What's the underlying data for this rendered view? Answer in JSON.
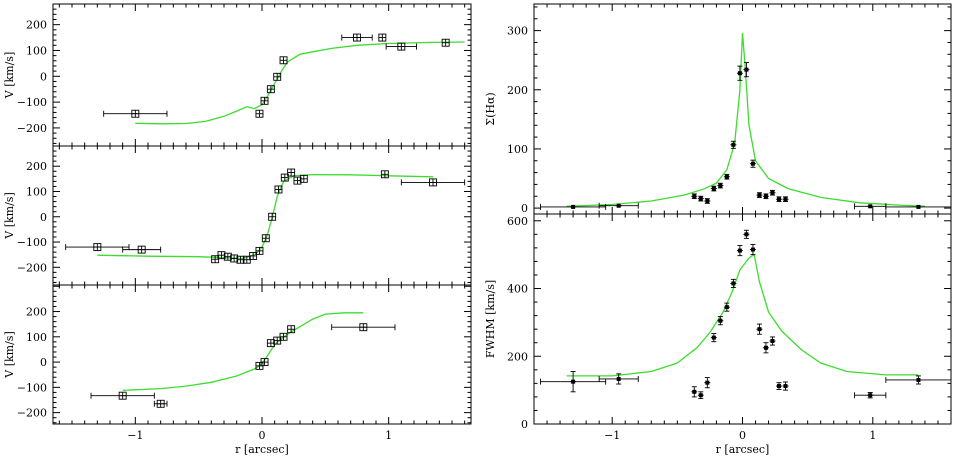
{
  "chart_data": [
    {
      "id": "vel-top",
      "type": "scatter",
      "ylabel": "V [km/s]",
      "xlim": [
        -1.65,
        1.65
      ],
      "ylim": [
        -270,
        280
      ],
      "xticks": [
        -1,
        0,
        1
      ],
      "yticks": [
        -200,
        -100,
        0,
        100,
        200
      ],
      "ytick_labels": [
        "−200",
        "−100",
        "0",
        "100",
        "200"
      ],
      "marker": "square",
      "points": [
        {
          "x": -1.0,
          "y": -145,
          "xerr_lo": 0.25,
          "xerr_hi": 0.25
        },
        {
          "x": -0.02,
          "y": -145
        },
        {
          "x": 0.02,
          "y": -95
        },
        {
          "x": 0.07,
          "y": -50
        },
        {
          "x": 0.12,
          "y": -2
        },
        {
          "x": 0.17,
          "y": 62
        },
        {
          "x": 0.75,
          "y": 150,
          "xerr_lo": 0.12,
          "xerr_hi": 0.12
        },
        {
          "x": 0.95,
          "y": 150
        },
        {
          "x": 1.1,
          "y": 115,
          "xerr_lo": 0.12,
          "xerr_hi": 0.12
        },
        {
          "x": 1.45,
          "y": 130
        }
      ],
      "model": [
        [
          -1.0,
          -182
        ],
        [
          -0.8,
          -184
        ],
        [
          -0.6,
          -183
        ],
        [
          -0.45,
          -175
        ],
        [
          -0.3,
          -155
        ],
        [
          -0.2,
          -135
        ],
        [
          -0.12,
          -118
        ],
        [
          -0.06,
          -125
        ],
        [
          0.0,
          -110
        ],
        [
          0.04,
          -80
        ],
        [
          0.08,
          -45
        ],
        [
          0.12,
          -10
        ],
        [
          0.16,
          25
        ],
        [
          0.2,
          55
        ],
        [
          0.3,
          85
        ],
        [
          0.4,
          95
        ],
        [
          0.55,
          108
        ],
        [
          0.75,
          120
        ],
        [
          1.0,
          127
        ],
        [
          1.3,
          131
        ],
        [
          1.6,
          133
        ]
      ]
    },
    {
      "id": "vel-mid",
      "type": "scatter",
      "ylabel": "V [km/s]",
      "xlim": [
        -1.65,
        1.65
      ],
      "ylim": [
        -270,
        280
      ],
      "xticks": [
        -1,
        0,
        1
      ],
      "yticks": [
        -200,
        -100,
        0,
        100,
        200
      ],
      "ytick_labels": [
        "−200",
        "−100",
        "0",
        "100",
        "200"
      ],
      "marker": "square",
      "points": [
        {
          "x": -1.3,
          "y": -120,
          "xerr_lo": 0.25,
          "xerr_hi": 0.25
        },
        {
          "x": -0.95,
          "y": -130,
          "xerr_lo": 0.15,
          "xerr_hi": 0.15
        },
        {
          "x": -0.37,
          "y": -168
        },
        {
          "x": -0.32,
          "y": -152
        },
        {
          "x": -0.27,
          "y": -158
        },
        {
          "x": -0.22,
          "y": -165
        },
        {
          "x": -0.17,
          "y": -170
        },
        {
          "x": -0.12,
          "y": -170
        },
        {
          "x": -0.07,
          "y": -155
        },
        {
          "x": -0.02,
          "y": -135
        },
        {
          "x": 0.03,
          "y": -85
        },
        {
          "x": 0.08,
          "y": 0
        },
        {
          "x": 0.13,
          "y": 108
        },
        {
          "x": 0.18,
          "y": 155
        },
        {
          "x": 0.23,
          "y": 175
        },
        {
          "x": 0.28,
          "y": 143
        },
        {
          "x": 0.33,
          "y": 150
        },
        {
          "x": 0.97,
          "y": 168
        },
        {
          "x": 1.35,
          "y": 136,
          "xerr_lo": 0.25,
          "xerr_hi": 0.25
        }
      ],
      "model": [
        [
          -1.3,
          -152
        ],
        [
          -0.9,
          -156
        ],
        [
          -0.5,
          -158
        ],
        [
          -0.3,
          -162
        ],
        [
          -0.15,
          -165
        ],
        [
          -0.05,
          -148
        ],
        [
          0.0,
          -120
        ],
        [
          0.04,
          -75
        ],
        [
          0.08,
          -5
        ],
        [
          0.12,
          80
        ],
        [
          0.17,
          140
        ],
        [
          0.25,
          162
        ],
        [
          0.4,
          167
        ],
        [
          0.7,
          166
        ],
        [
          1.0,
          162
        ],
        [
          1.35,
          158
        ]
      ]
    },
    {
      "id": "vel-bot",
      "type": "scatter",
      "ylabel": "V [km/s]",
      "xlabel": "r [arcsec]",
      "xlim": [
        -1.65,
        1.65
      ],
      "ylim": [
        -245,
        305
      ],
      "xticks": [
        -1,
        0,
        1
      ],
      "xtick_labels": [
        "−1",
        "0",
        "1"
      ],
      "yticks": [
        -200,
        -100,
        0,
        100,
        200
      ],
      "ytick_labels": [
        "−200",
        "−100",
        "0",
        "100",
        "200"
      ],
      "marker": "square",
      "points": [
        {
          "x": -1.1,
          "y": -133,
          "xerr_lo": 0.25,
          "xerr_hi": 0.25
        },
        {
          "x": -0.8,
          "y": -165,
          "xerr_lo": 0.05,
          "xerr_hi": 0.05
        },
        {
          "x": -0.02,
          "y": -15
        },
        {
          "x": 0.02,
          "y": 0
        },
        {
          "x": 0.07,
          "y": 75
        },
        {
          "x": 0.12,
          "y": 85
        },
        {
          "x": 0.17,
          "y": 100
        },
        {
          "x": 0.23,
          "y": 130
        },
        {
          "x": 0.8,
          "y": 138,
          "xerr_lo": 0.25,
          "xerr_hi": 0.25
        }
      ],
      "model": [
        [
          -1.1,
          -112
        ],
        [
          -0.8,
          -105
        ],
        [
          -0.6,
          -95
        ],
        [
          -0.4,
          -80
        ],
        [
          -0.2,
          -55
        ],
        [
          -0.05,
          -25
        ],
        [
          0.0,
          -5
        ],
        [
          0.05,
          30
        ],
        [
          0.1,
          70
        ],
        [
          0.2,
          110
        ],
        [
          0.3,
          140
        ],
        [
          0.4,
          170
        ],
        [
          0.5,
          190
        ],
        [
          0.65,
          195
        ],
        [
          0.8,
          195
        ]
      ]
    },
    {
      "id": "sigma-halpha",
      "type": "scatter",
      "ylabel": "Σ(Hα)",
      "xlim": [
        -1.6,
        1.6
      ],
      "ylim": [
        -10,
        345
      ],
      "xticks": [
        -1,
        0,
        1
      ],
      "yticks": [
        0,
        100,
        200,
        300
      ],
      "ytick_labels": [
        "0",
        "100",
        "200",
        "300"
      ],
      "marker": "dot",
      "points": [
        {
          "x": -1.3,
          "y": 2,
          "xerr_lo": 0.25,
          "xerr_hi": 0.25
        },
        {
          "x": -0.95,
          "y": 4,
          "xerr_lo": 0.15,
          "xerr_hi": 0.15
        },
        {
          "x": -0.37,
          "y": 20,
          "yerr": 4
        },
        {
          "x": -0.32,
          "y": 16,
          "yerr": 4
        },
        {
          "x": -0.27,
          "y": 12,
          "yerr": 4
        },
        {
          "x": -0.22,
          "y": 33,
          "yerr": 4
        },
        {
          "x": -0.17,
          "y": 38,
          "yerr": 4
        },
        {
          "x": -0.12,
          "y": 53,
          "yerr": 4
        },
        {
          "x": -0.07,
          "y": 107,
          "yerr": 6
        },
        {
          "x": -0.02,
          "y": 228,
          "yerr": 12
        },
        {
          "x": 0.03,
          "y": 234,
          "yerr": 12
        },
        {
          "x": 0.08,
          "y": 75,
          "yerr": 6
        },
        {
          "x": 0.13,
          "y": 22,
          "yerr": 4
        },
        {
          "x": 0.18,
          "y": 20,
          "yerr": 4
        },
        {
          "x": 0.23,
          "y": 26,
          "yerr": 4
        },
        {
          "x": 0.28,
          "y": 15,
          "yerr": 4
        },
        {
          "x": 0.33,
          "y": 15,
          "yerr": 4
        },
        {
          "x": 0.98,
          "y": 3,
          "xerr_lo": 0.12,
          "xerr_hi": 0.12
        },
        {
          "x": 1.35,
          "y": 2,
          "xerr_lo": 0.25,
          "xerr_hi": 0.25
        }
      ],
      "model": [
        [
          -1.35,
          3
        ],
        [
          -1.0,
          6
        ],
        [
          -0.7,
          12
        ],
        [
          -0.45,
          22
        ],
        [
          -0.3,
          32
        ],
        [
          -0.2,
          42
        ],
        [
          -0.12,
          65
        ],
        [
          -0.06,
          110
        ],
        [
          -0.02,
          200
        ],
        [
          0.0,
          296
        ],
        [
          0.02,
          240
        ],
        [
          0.05,
          140
        ],
        [
          0.1,
          80
        ],
        [
          0.2,
          50
        ],
        [
          0.35,
          33
        ],
        [
          0.6,
          18
        ],
        [
          0.9,
          9
        ],
        [
          1.2,
          5
        ],
        [
          1.4,
          3
        ]
      ]
    },
    {
      "id": "fwhm",
      "type": "scatter",
      "ylabel": "FWHM [km/s]",
      "xlabel": "r [arcsec]",
      "xlim": [
        -1.6,
        1.6
      ],
      "ylim": [
        0,
        620
      ],
      "xticks": [
        -1,
        0,
        1
      ],
      "xtick_labels": [
        "−1",
        "0",
        "1"
      ],
      "yticks": [
        0,
        200,
        400,
        600
      ],
      "ytick_labels": [
        "0",
        "200",
        "400",
        "600"
      ],
      "marker": "dot",
      "points": [
        {
          "x": -1.3,
          "y": 125,
          "xerr_lo": 0.25,
          "xerr_hi": 0.25,
          "yerr": 30
        },
        {
          "x": -0.95,
          "y": 133,
          "xerr_lo": 0.15,
          "xerr_hi": 0.15,
          "yerr": 15
        },
        {
          "x": -0.37,
          "y": 95,
          "yerr": 15
        },
        {
          "x": -0.32,
          "y": 85,
          "yerr": 10
        },
        {
          "x": -0.27,
          "y": 122,
          "yerr": 15
        },
        {
          "x": -0.22,
          "y": 255,
          "yerr": 12
        },
        {
          "x": -0.17,
          "y": 305,
          "yerr": 12
        },
        {
          "x": -0.12,
          "y": 345,
          "yerr": 12
        },
        {
          "x": -0.07,
          "y": 415,
          "yerr": 12
        },
        {
          "x": -0.02,
          "y": 512,
          "yerr": 15
        },
        {
          "x": 0.03,
          "y": 560,
          "yerr": 12
        },
        {
          "x": 0.08,
          "y": 515,
          "yerr": 15
        },
        {
          "x": 0.13,
          "y": 280,
          "yerr": 15
        },
        {
          "x": 0.18,
          "y": 225,
          "yerr": 15
        },
        {
          "x": 0.23,
          "y": 245,
          "yerr": 12
        },
        {
          "x": 0.28,
          "y": 112,
          "yerr": 10
        },
        {
          "x": 0.33,
          "y": 112,
          "yerr": 12
        },
        {
          "x": 0.98,
          "y": 85,
          "xerr_lo": 0.12,
          "xerr_hi": 0.12,
          "yerr": 8
        },
        {
          "x": 1.35,
          "y": 130,
          "xerr_lo": 0.25,
          "xerr_hi": 0.25,
          "yerr": 12
        }
      ],
      "model": [
        [
          -1.35,
          142
        ],
        [
          -1.0,
          142
        ],
        [
          -0.7,
          155
        ],
        [
          -0.5,
          180
        ],
        [
          -0.35,
          225
        ],
        [
          -0.25,
          270
        ],
        [
          -0.15,
          330
        ],
        [
          -0.08,
          390
        ],
        [
          -0.02,
          455
        ],
        [
          0.05,
          490
        ],
        [
          0.09,
          500
        ],
        [
          0.13,
          420
        ],
        [
          0.2,
          330
        ],
        [
          0.3,
          275
        ],
        [
          0.45,
          220
        ],
        [
          0.6,
          180
        ],
        [
          0.8,
          155
        ],
        [
          1.1,
          145
        ],
        [
          1.35,
          145
        ]
      ]
    }
  ]
}
